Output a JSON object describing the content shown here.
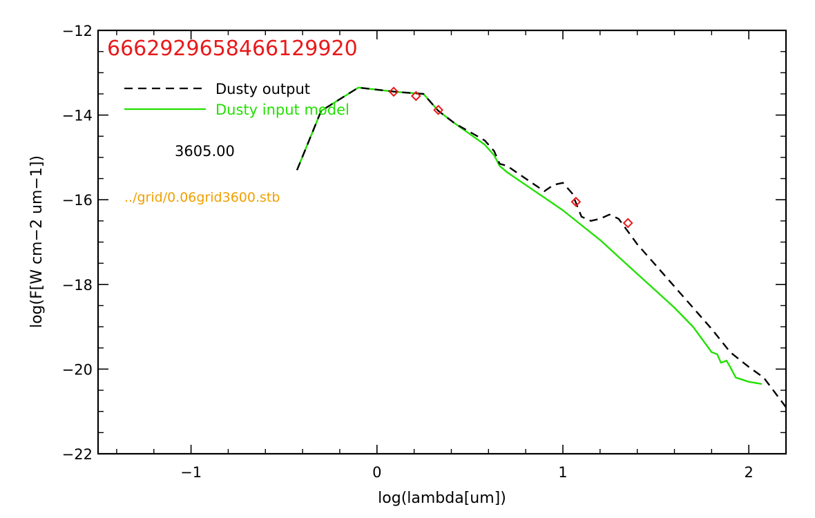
{
  "chart_data": {
    "type": "line",
    "title": "6662929658466129920",
    "xlabel": "log(lambda[um])",
    "ylabel": "log(F[W cm−2 um−1])",
    "xlim": [
      -1.5,
      2.2
    ],
    "ylim": [
      -22,
      -12
    ],
    "xticks": [
      -1,
      0,
      1,
      2
    ],
    "xtick_labels": [
      "−1",
      "0",
      "1",
      "2"
    ],
    "yticks": [
      -12,
      -14,
      -16,
      -18,
      -20,
      -22
    ],
    "ytick_labels": [
      "−12",
      "−14",
      "−16",
      "−18",
      "−20",
      "−22"
    ],
    "grid": false,
    "legend_position": "top-left",
    "annotations": {
      "temperature": "3605.00",
      "grid_file": "../grid/0.06grid3600.stb"
    },
    "colors": {
      "title": "#e8191b",
      "dusty_output": "#000000",
      "dusty_input": "#22e000",
      "photometry": "#e8191b",
      "grid_file": "#f0a000",
      "axes": "#000000"
    },
    "series": [
      {
        "name": "Dusty output",
        "style": "dashed",
        "x": [
          -0.43,
          -0.3,
          -0.1,
          0.1,
          0.25,
          0.33,
          0.42,
          0.5,
          0.58,
          0.63,
          0.66,
          0.7,
          0.8,
          0.9,
          0.95,
          1.0,
          1.05,
          1.1,
          1.15,
          1.2,
          1.25,
          1.3,
          1.35,
          1.4,
          1.5,
          1.6,
          1.7,
          1.8,
          1.9,
          2.0,
          2.08,
          2.2
        ],
        "y": [
          -15.3,
          -13.9,
          -13.35,
          -13.45,
          -13.5,
          -13.9,
          -14.2,
          -14.4,
          -14.6,
          -14.85,
          -15.15,
          -15.2,
          -15.5,
          -15.8,
          -15.65,
          -15.6,
          -15.85,
          -16.4,
          -16.5,
          -16.45,
          -16.35,
          -16.45,
          -16.75,
          -17.05,
          -17.55,
          -18.05,
          -18.55,
          -19.05,
          -19.6,
          -19.95,
          -20.2,
          -20.9
        ]
      },
      {
        "name": "Dusty input model",
        "style": "solid",
        "x": [
          -0.43,
          -0.3,
          -0.1,
          0.1,
          0.25,
          0.33,
          0.42,
          0.5,
          0.58,
          0.63,
          0.66,
          0.7,
          0.8,
          0.9,
          1.0,
          1.1,
          1.2,
          1.3,
          1.4,
          1.5,
          1.6,
          1.7,
          1.75,
          1.8,
          1.83,
          1.85,
          1.88,
          1.9,
          1.93,
          2.0,
          2.07
        ],
        "y": [
          -15.3,
          -13.9,
          -13.35,
          -13.45,
          -13.5,
          -13.9,
          -14.2,
          -14.45,
          -14.7,
          -14.95,
          -15.2,
          -15.35,
          -15.65,
          -15.95,
          -16.25,
          -16.6,
          -16.95,
          -17.35,
          -17.75,
          -18.15,
          -18.55,
          -19.0,
          -19.3,
          -19.6,
          -19.65,
          -19.85,
          -19.8,
          -19.95,
          -20.2,
          -20.3,
          -20.35
        ]
      },
      {
        "name": "photometry",
        "style": "markers",
        "x": [
          0.09,
          0.21,
          0.33,
          1.07,
          1.35
        ],
        "y": [
          -13.45,
          -13.55,
          -13.88,
          -16.05,
          -16.55
        ]
      }
    ]
  }
}
